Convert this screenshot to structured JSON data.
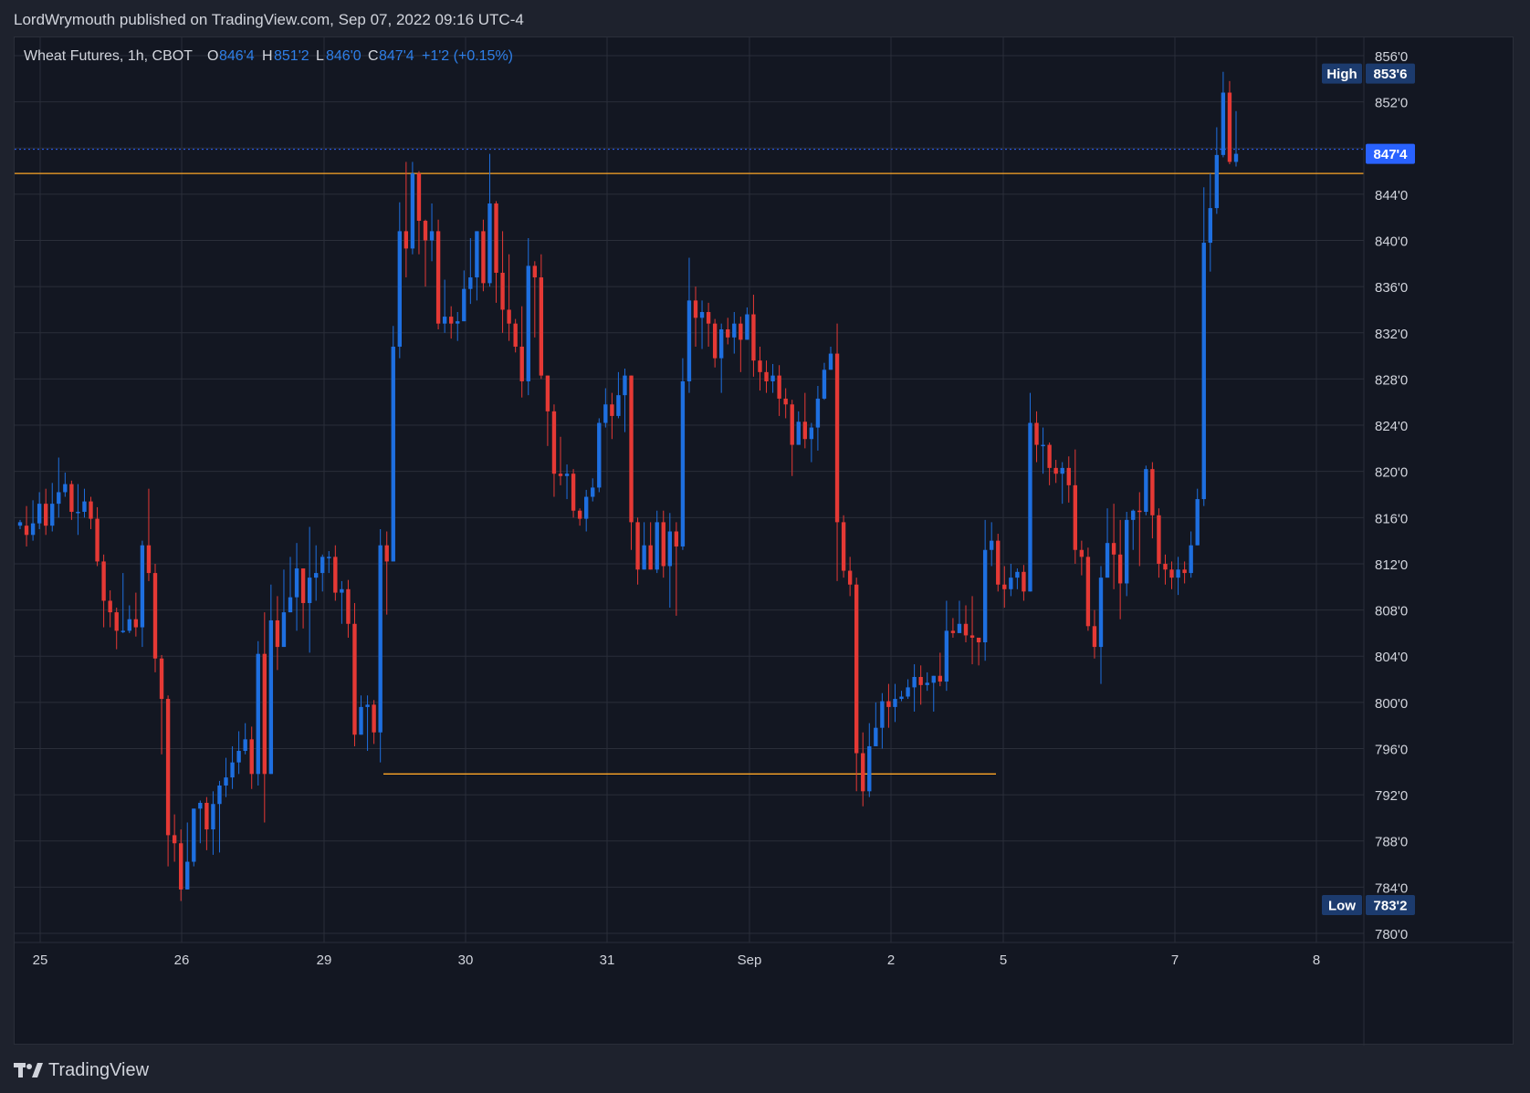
{
  "header": {
    "text": "LordWrymouth published on TradingView.com, Sep 07, 2022 09:16 UTC-4"
  },
  "legend": {
    "symbol": "Wheat Futures, 1h, CBOT",
    "o_label": "O",
    "o_value": "846'4",
    "h_label": "H",
    "h_value": "851'2",
    "l_label": "L",
    "l_value": "846'0",
    "c_label": "C",
    "c_value": "847'4",
    "change": "+1'2 (+0.15%)"
  },
  "footer": {
    "brand": "TradingView",
    "logo_icon": "tradingview-logo-icon"
  },
  "colors": {
    "background": "#131722",
    "frame": "#1e222d",
    "grid": "#2a2e39",
    "text": "#d1d4dc",
    "up": "#2962ff",
    "up_candle": "#1e6fe0",
    "down": "#e53935",
    "level": "#ffa726",
    "price_tag": "#2962ff",
    "high_low_tag": "#1c3b6e"
  },
  "chart_data": {
    "type": "candlestick",
    "title": "Wheat Futures, 1h, CBOT",
    "price_unit": "cents (1/8 fractional notation)",
    "ylim": [
      780,
      857
    ],
    "y_ticks": [
      "780'0",
      "784'0",
      "788'0",
      "792'0",
      "796'0",
      "800'0",
      "804'0",
      "808'0",
      "812'0",
      "816'0",
      "820'0",
      "824'0",
      "828'0",
      "832'0",
      "836'0",
      "840'0",
      "844'0",
      "848'0",
      "852'0",
      "856'0"
    ],
    "x_ticks": [
      "25",
      "26",
      "29",
      "30",
      "31",
      "Sep",
      "2",
      "5",
      "7",
      "8"
    ],
    "grid": true,
    "last_price": {
      "label": "847'4",
      "value": 847.5
    },
    "high_marker": {
      "label": "High",
      "value_label": "853'6",
      "value": 853.75
    },
    "low_marker": {
      "label": "Low",
      "value_label": "783'2",
      "value": 783.25
    },
    "levels": [
      {
        "name": "resistance",
        "value": 845.8,
        "from": "25",
        "to": "8"
      },
      {
        "name": "support",
        "value": 793.8,
        "from": "29",
        "to": "5"
      }
    ],
    "candles": [
      [
        815.3,
        815.6,
        815.8,
        815.0
      ],
      [
        815.3,
        814.5,
        817.0,
        813.5
      ],
      [
        814.5,
        815.5,
        817.5,
        814.0
      ],
      [
        815.5,
        817.2,
        818.2,
        815.0
      ],
      [
        817.2,
        815.3,
        818.5,
        814.5
      ],
      [
        815.3,
        817.2,
        819.0,
        814.8
      ],
      [
        817.2,
        818.2,
        821.2,
        816.0
      ],
      [
        818.2,
        818.9,
        819.9,
        817.8
      ],
      [
        818.9,
        816.5,
        819.2,
        815.8
      ],
      [
        816.5,
        816.5,
        818.9,
        814.5
      ],
      [
        816.5,
        817.4,
        818.5,
        816.0
      ],
      [
        817.4,
        815.9,
        817.8,
        815.0
      ],
      [
        815.9,
        812.2,
        816.9,
        811.8
      ],
      [
        812.2,
        808.8,
        812.8,
        806.5
      ],
      [
        808.8,
        807.8,
        809.7,
        806.5
      ],
      [
        807.8,
        806.2,
        808.2,
        804.6
      ],
      [
        806.2,
        806.2,
        811.2,
        806.0
      ],
      [
        806.2,
        807.2,
        808.4,
        806.0
      ],
      [
        807.2,
        806.5,
        809.5,
        805.7
      ],
      [
        806.5,
        813.6,
        814.0,
        804.8
      ],
      [
        813.6,
        811.2,
        818.5,
        810.5
      ],
      [
        811.2,
        803.8,
        812.0,
        802.6
      ],
      [
        803.8,
        800.3,
        804.1,
        795.5
      ],
      [
        800.3,
        788.5,
        800.6,
        785.8
      ],
      [
        788.5,
        787.8,
        790.3,
        786.2
      ],
      [
        787.8,
        783.8,
        789.0,
        782.8
      ],
      [
        783.8,
        786.2,
        789.6,
        784.8
      ],
      [
        786.2,
        790.8,
        790.5,
        785.8
      ],
      [
        790.8,
        791.3,
        791.5,
        787.8
      ],
      [
        791.3,
        789.0,
        791.8,
        787.2
      ],
      [
        789.0,
        791.2,
        792.3,
        786.8
      ],
      [
        791.2,
        792.8,
        793.2,
        787.0
      ],
      [
        792.8,
        793.5,
        795.2,
        791.8
      ],
      [
        793.5,
        794.8,
        796.2,
        792.5
      ],
      [
        794.8,
        795.8,
        797.5,
        793.8
      ],
      [
        795.8,
        796.8,
        798.2,
        795.5
      ],
      [
        796.8,
        793.8,
        797.9,
        792.5
      ],
      [
        793.8,
        804.2,
        805.3,
        792.8
      ],
      [
        804.2,
        793.8,
        807.8,
        789.6
      ],
      [
        793.8,
        807.1,
        810.2,
        793.8
      ],
      [
        807.1,
        804.8,
        809.2,
        802.8
      ],
      [
        804.8,
        807.8,
        811.5,
        804.8
      ],
      [
        807.8,
        809.1,
        812.6,
        808.2
      ],
      [
        809.1,
        811.6,
        813.8,
        806.2
      ],
      [
        811.6,
        808.6,
        811.6,
        806.4
      ],
      [
        808.6,
        810.8,
        815.2,
        804.3
      ],
      [
        810.8,
        811.2,
        813.6,
        808.8
      ],
      [
        811.2,
        812.6,
        812.8,
        809.6
      ],
      [
        812.6,
        812.6,
        813.1,
        811.2
      ],
      [
        812.6,
        809.5,
        813.6,
        808.8
      ],
      [
        809.5,
        809.8,
        810.5,
        806.8
      ],
      [
        809.8,
        806.8,
        810.6,
        805.6
      ],
      [
        806.8,
        797.2,
        808.6,
        796.2
      ],
      [
        797.2,
        799.6,
        800.6,
        797.2
      ],
      [
        799.6,
        799.8,
        800.6,
        795.8
      ],
      [
        799.8,
        797.4,
        800.2,
        796.4
      ],
      [
        797.4,
        813.6,
        815.0,
        794.8
      ],
      [
        813.6,
        812.2,
        814.8,
        807.6
      ],
      [
        812.2,
        830.8,
        832.6,
        812.2
      ],
      [
        830.8,
        840.8,
        843.3,
        829.8
      ],
      [
        840.8,
        839.3,
        846.8,
        836.8
      ],
      [
        839.3,
        845.8,
        846.8,
        838.8
      ],
      [
        845.8,
        841.7,
        846.0,
        838.8
      ],
      [
        841.7,
        840.0,
        841.8,
        836.0
      ],
      [
        840.0,
        840.8,
        843.2,
        838.2
      ],
      [
        840.8,
        832.8,
        841.8,
        832.3
      ],
      [
        832.8,
        833.4,
        836.6,
        832.0
      ],
      [
        833.4,
        832.8,
        834.3,
        831.5
      ],
      [
        832.8,
        833.0,
        833.8,
        831.3
      ],
      [
        833.0,
        835.8,
        837.4,
        834.0
      ],
      [
        835.8,
        836.8,
        840.2,
        834.5
      ],
      [
        836.8,
        840.8,
        840.8,
        834.8
      ],
      [
        840.8,
        836.3,
        841.8,
        835.6
      ],
      [
        836.3,
        843.2,
        847.5,
        836.0
      ],
      [
        843.2,
        837.2,
        843.4,
        834.6
      ],
      [
        837.2,
        834.0,
        840.8,
        832.0
      ],
      [
        834.0,
        832.8,
        838.8,
        831.3
      ],
      [
        832.8,
        830.8,
        833.2,
        830.3
      ],
      [
        830.8,
        827.8,
        834.3,
        826.4
      ],
      [
        827.8,
        837.8,
        840.2,
        826.6
      ],
      [
        837.8,
        836.8,
        838.2,
        831.6
      ],
      [
        836.8,
        828.3,
        838.8,
        828.0
      ],
      [
        828.3,
        825.2,
        828.3,
        822.2
      ],
      [
        825.2,
        819.8,
        825.8,
        817.8
      ],
      [
        819.8,
        819.6,
        823.0,
        818.8
      ],
      [
        819.6,
        819.8,
        820.6,
        817.6
      ],
      [
        819.8,
        816.6,
        820.2,
        816.0
      ],
      [
        816.6,
        815.9,
        816.8,
        815.3
      ],
      [
        815.9,
        817.8,
        818.4,
        814.8
      ],
      [
        817.8,
        818.6,
        819.4,
        817.4
      ],
      [
        818.6,
        824.2,
        824.6,
        818.2
      ],
      [
        824.2,
        825.8,
        827.2,
        823.8
      ],
      [
        825.8,
        824.8,
        826.8,
        822.8
      ],
      [
        824.8,
        826.6,
        828.6,
        824.6
      ],
      [
        826.6,
        828.3,
        828.9,
        823.4
      ],
      [
        828.3,
        815.6,
        828.3,
        813.2
      ],
      [
        815.6,
        811.5,
        816.0,
        810.2
      ],
      [
        811.5,
        813.6,
        815.6,
        812.0
      ],
      [
        813.6,
        811.5,
        815.6,
        811.6
      ],
      [
        811.5,
        815.6,
        816.6,
        811.2
      ],
      [
        815.6,
        811.8,
        816.6,
        810.8
      ],
      [
        811.8,
        814.8,
        816.4,
        808.2
      ],
      [
        814.8,
        813.5,
        815.6,
        807.5
      ],
      [
        813.5,
        827.8,
        829.8,
        813.2
      ],
      [
        827.8,
        834.8,
        838.5,
        826.8
      ],
      [
        834.8,
        833.3,
        836.0,
        830.8
      ],
      [
        833.3,
        833.8,
        834.8,
        830.6
      ],
      [
        833.8,
        832.8,
        834.6,
        830.8
      ],
      [
        832.8,
        829.8,
        833.2,
        829.0
      ],
      [
        829.8,
        832.3,
        832.8,
        826.8
      ],
      [
        832.3,
        831.6,
        833.3,
        831.0
      ],
      [
        831.6,
        832.8,
        833.8,
        830.2
      ],
      [
        832.8,
        831.4,
        833.4,
        828.6
      ],
      [
        831.4,
        833.6,
        834.2,
        832.8
      ],
      [
        833.6,
        829.6,
        835.3,
        828.2
      ],
      [
        829.6,
        828.6,
        830.8,
        827.0
      ],
      [
        828.6,
        827.8,
        829.6,
        826.8
      ],
      [
        827.8,
        828.3,
        829.3,
        826.8
      ],
      [
        828.3,
        826.3,
        829.2,
        824.8
      ],
      [
        826.3,
        825.8,
        827.2,
        824.6
      ],
      [
        825.8,
        822.3,
        826.2,
        819.6
      ],
      [
        822.3,
        824.3,
        825.2,
        822.6
      ],
      [
        824.3,
        822.8,
        826.8,
        822.0
      ],
      [
        822.8,
        823.8,
        824.2,
        820.8
      ],
      [
        823.8,
        826.3,
        827.4,
        821.8
      ],
      [
        826.3,
        828.8,
        829.4,
        826.2
      ],
      [
        828.8,
        830.2,
        830.8,
        828.8
      ],
      [
        830.2,
        815.6,
        832.8,
        810.5
      ],
      [
        815.6,
        811.4,
        816.2,
        810.8
      ],
      [
        811.4,
        810.2,
        812.6,
        809.2
      ],
      [
        810.2,
        795.6,
        810.8,
        792.3
      ],
      [
        795.6,
        792.3,
        797.4,
        791.0
      ],
      [
        792.3,
        796.2,
        798.2,
        791.8
      ],
      [
        796.2,
        797.8,
        800.0,
        796.2
      ],
      [
        797.8,
        800.1,
        800.8,
        796.0
      ],
      [
        800.1,
        799.6,
        801.6,
        797.8
      ],
      [
        799.6,
        800.3,
        801.6,
        798.3
      ],
      [
        800.3,
        800.5,
        801.0,
        800.1
      ],
      [
        800.5,
        801.3,
        802.0,
        800.3
      ],
      [
        801.3,
        802.2,
        803.3,
        799.2
      ],
      [
        802.2,
        801.5,
        803.2,
        799.8
      ],
      [
        801.5,
        801.7,
        802.6,
        801.0
      ],
      [
        801.7,
        802.3,
        802.3,
        799.2
      ],
      [
        802.3,
        801.8,
        804.3,
        801.4
      ],
      [
        801.8,
        806.2,
        808.8,
        801.0
      ],
      [
        806.2,
        806.0,
        807.3,
        805.6
      ],
      [
        806.0,
        806.8,
        808.8,
        806.4
      ],
      [
        806.8,
        805.8,
        808.4,
        805.2
      ],
      [
        805.8,
        805.6,
        809.2,
        803.3
      ],
      [
        805.6,
        805.2,
        805.6,
        803.2
      ],
      [
        805.2,
        813.2,
        815.8,
        803.6
      ],
      [
        813.2,
        814.0,
        815.6,
        811.8
      ],
      [
        814.0,
        810.2,
        814.6,
        809.6
      ],
      [
        810.2,
        809.8,
        811.8,
        808.2
      ],
      [
        809.8,
        810.8,
        812.0,
        809.2
      ],
      [
        810.8,
        811.3,
        811.6,
        809.8
      ],
      [
        811.3,
        809.6,
        811.9,
        808.8
      ],
      [
        809.6,
        824.2,
        826.8,
        809.8
      ],
      [
        824.2,
        822.3,
        825.2,
        820.8
      ],
      [
        822.3,
        822.3,
        823.8,
        819.8
      ],
      [
        822.3,
        820.3,
        822.5,
        818.8
      ],
      [
        820.3,
        819.8,
        821.0,
        819.0
      ],
      [
        819.8,
        820.3,
        820.8,
        817.2
      ],
      [
        820.3,
        818.8,
        821.3,
        817.3
      ],
      [
        818.8,
        813.2,
        821.9,
        812.0
      ],
      [
        813.2,
        812.6,
        814.0,
        811.0
      ],
      [
        812.6,
        806.6,
        813.4,
        806.2
      ],
      [
        806.6,
        804.8,
        808.0,
        803.8
      ],
      [
        804.8,
        810.8,
        811.8,
        801.6
      ],
      [
        810.8,
        813.8,
        816.8,
        810.8
      ],
      [
        813.8,
        812.8,
        817.2,
        809.8
      ],
      [
        812.8,
        810.3,
        815.8,
        807.2
      ],
      [
        810.3,
        815.8,
        816.5,
        809.2
      ],
      [
        815.8,
        816.6,
        816.7,
        813.2
      ],
      [
        816.6,
        816.5,
        818.2,
        811.8
      ],
      [
        816.5,
        820.2,
        820.5,
        816.2
      ],
      [
        820.2,
        816.2,
        820.8,
        814.2
      ],
      [
        816.2,
        812.0,
        816.8,
        810.8
      ],
      [
        812.0,
        811.5,
        812.8,
        810.2
      ],
      [
        811.5,
        810.8,
        812.2,
        809.8
      ],
      [
        810.8,
        811.5,
        812.6,
        809.3
      ],
      [
        811.5,
        811.2,
        812.2,
        810.3
      ],
      [
        811.2,
        813.6,
        814.8,
        810.8
      ],
      [
        813.6,
        817.6,
        818.5,
        814.2
      ],
      [
        817.6,
        839.8,
        844.6,
        817.0
      ],
      [
        839.8,
        842.8,
        845.8,
        837.3
      ],
      [
        842.8,
        847.4,
        849.8,
        842.3
      ],
      [
        847.4,
        852.8,
        854.6,
        847.2
      ],
      [
        852.8,
        846.8,
        853.8,
        846.6
      ],
      [
        846.8,
        847.5,
        851.2,
        846.4
      ]
    ]
  }
}
